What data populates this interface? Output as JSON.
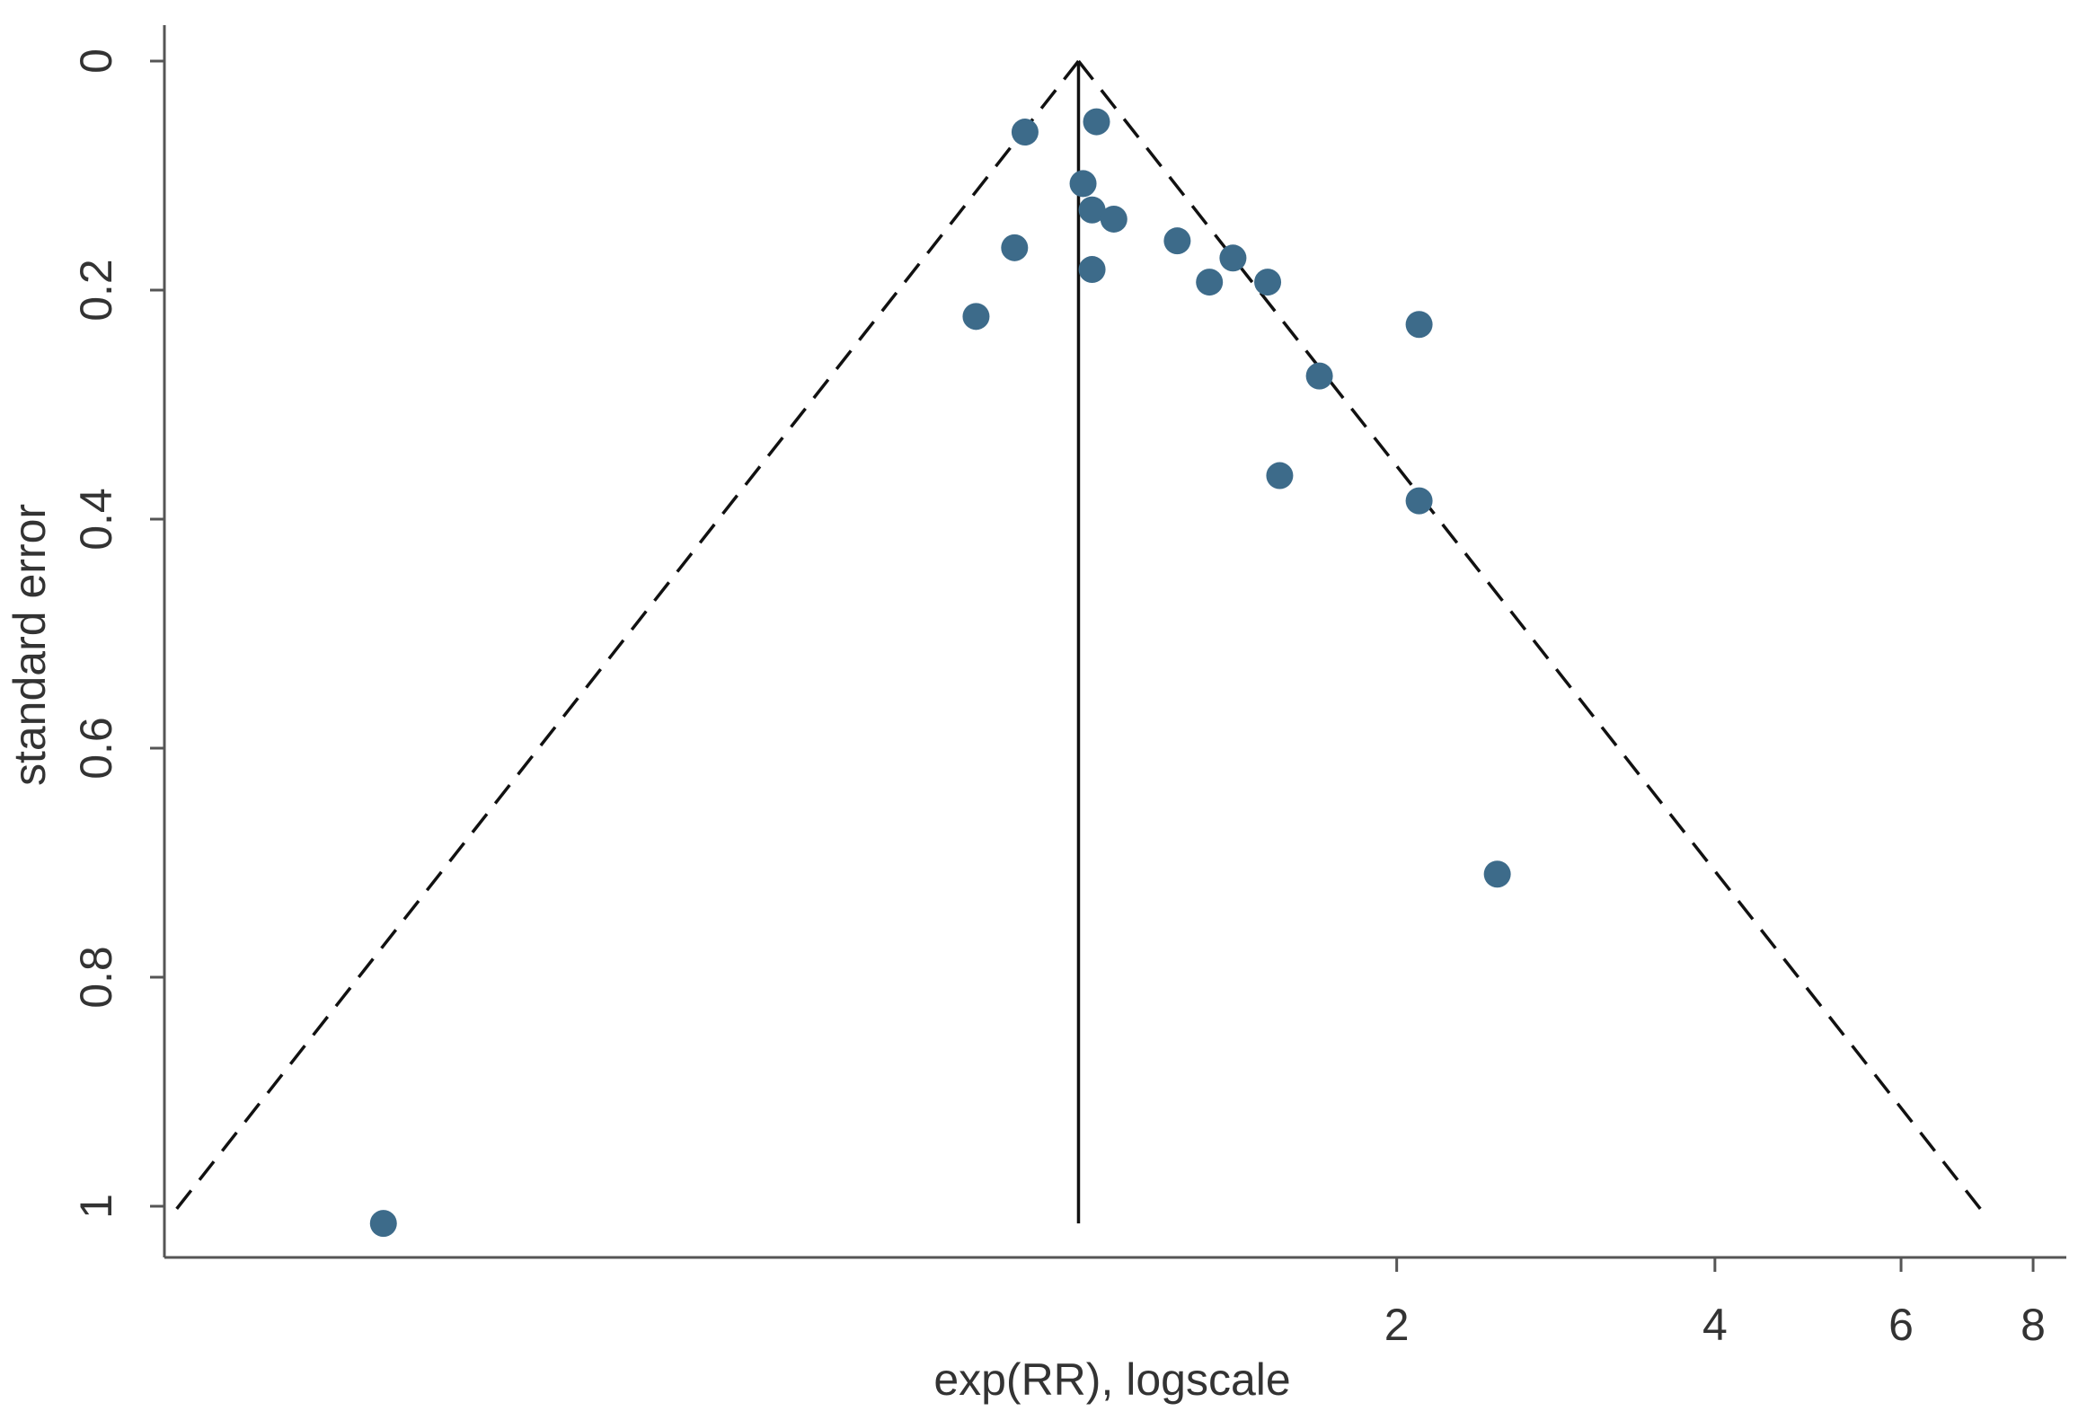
{
  "chart_data": {
    "type": "scatter",
    "subtype": "funnel-plot",
    "xlabel": "exp(RR), logscale",
    "ylabel": "standard error",
    "x_scale": "log",
    "y_reversed": true,
    "pooled_estimate": 1.0,
    "ci_multiplier": 1.96,
    "x_ticks": [
      {
        "value": 2,
        "label": "2"
      },
      {
        "value": 4,
        "label": "4"
      },
      {
        "value": 6,
        "label": "6"
      },
      {
        "value": 8,
        "label": "8"
      }
    ],
    "y_ticks": [
      {
        "value": 0,
        "label": "0"
      },
      {
        "value": 0.2,
        "label": "0.2"
      },
      {
        "value": 0.4,
        "label": "0.4"
      },
      {
        "value": 0.6,
        "label": "0.6"
      },
      {
        "value": 0.8,
        "label": "0.8"
      },
      {
        "value": 1,
        "label": "1"
      }
    ],
    "xlim": [
      0.136,
      8.6
    ],
    "ylim": [
      0,
      1.04
    ],
    "point_color": "#3d6b8a",
    "line_color": "#111111",
    "points": [
      {
        "x": 0.89,
        "y": 0.062
      },
      {
        "x": 1.04,
        "y": 0.053
      },
      {
        "x": 1.01,
        "y": 0.107
      },
      {
        "x": 1.03,
        "y": 0.13
      },
      {
        "x": 1.08,
        "y": 0.138
      },
      {
        "x": 0.87,
        "y": 0.163
      },
      {
        "x": 1.24,
        "y": 0.157
      },
      {
        "x": 1.4,
        "y": 0.172
      },
      {
        "x": 1.03,
        "y": 0.182
      },
      {
        "x": 1.33,
        "y": 0.193
      },
      {
        "x": 1.51,
        "y": 0.193
      },
      {
        "x": 0.8,
        "y": 0.223
      },
      {
        "x": 2.1,
        "y": 0.23
      },
      {
        "x": 1.69,
        "y": 0.275
      },
      {
        "x": 1.55,
        "y": 0.362
      },
      {
        "x": 2.1,
        "y": 0.384
      },
      {
        "x": 2.49,
        "y": 0.71
      },
      {
        "x": 0.22,
        "y": 1.015
      }
    ]
  }
}
